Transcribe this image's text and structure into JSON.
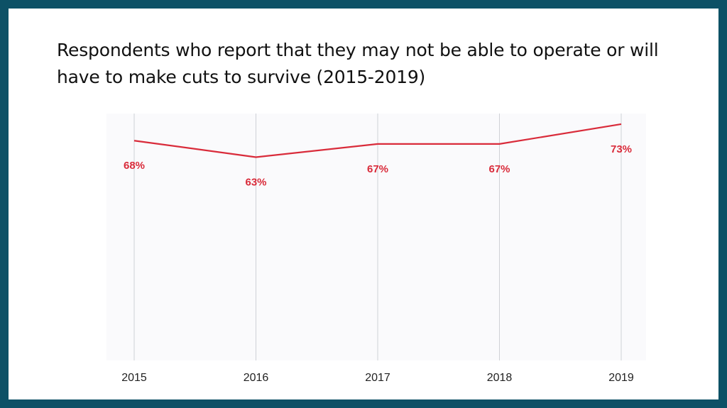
{
  "page": {
    "title": "Respondents who report that they may not be able to operate or will have to make cuts to survive (2015-2019)"
  },
  "colors": {
    "frame": "#0d5166",
    "background": "#ffffff",
    "plot_background": "#fafafc",
    "line": "#d92b3a",
    "data_label": "#d92b3a",
    "gridline": "#cfd1d6",
    "tick_label": "#222222"
  },
  "chart_data": {
    "type": "line",
    "title": "Respondents who report that they may not be able to operate or will have to make cuts to survive (2015-2019)",
    "xlabel": "",
    "ylabel": "",
    "categories": [
      "2015",
      "2016",
      "2017",
      "2018",
      "2019"
    ],
    "series": [
      {
        "values": [
          68,
          63,
          67,
          67,
          73
        ],
        "data_labels": [
          "68%",
          "63%",
          "67%",
          "67%",
          "73%"
        ]
      }
    ],
    "ylim": [
      0,
      80
    ],
    "grid": "vertical",
    "legend": "none"
  }
}
